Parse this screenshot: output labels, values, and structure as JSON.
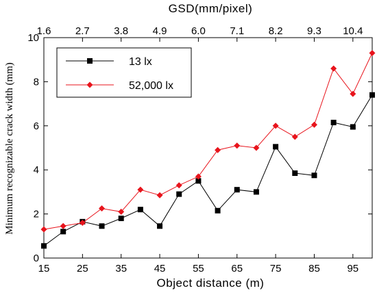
{
  "chart_data": {
    "type": "line",
    "xlabel": "Object distance (m)",
    "ylabel": "Minimum recognizable crack width (mm)",
    "top_axis_label": "GSD(mm/pixel)",
    "xlim": [
      15,
      100
    ],
    "ylim": [
      0,
      10
    ],
    "x_ticks": [
      15,
      25,
      35,
      45,
      55,
      65,
      75,
      85,
      95
    ],
    "x_tick_labels": [
      "15",
      "25",
      "35",
      "45",
      "55",
      "65",
      "75",
      "85",
      "95"
    ],
    "y_ticks": [
      0,
      2,
      4,
      6,
      8,
      10
    ],
    "y_tick_labels": [
      "0",
      "2",
      "4",
      "6",
      "8",
      "10"
    ],
    "top_ticks": [
      15,
      25,
      35,
      45,
      55,
      65,
      75,
      85,
      95
    ],
    "top_tick_labels": [
      "1.6",
      "2.7",
      "3.8",
      "4.9",
      "6.0",
      "7.1",
      "8.2",
      "9.3",
      "10.4"
    ],
    "x": [
      15,
      20,
      25,
      30,
      35,
      40,
      45,
      50,
      55,
      60,
      65,
      70,
      75,
      80,
      85,
      90,
      95,
      100
    ],
    "series": [
      {
        "name": "13 lx",
        "color": "#000000",
        "marker": "square",
        "values": [
          0.55,
          1.2,
          1.65,
          1.45,
          1.8,
          2.2,
          1.45,
          2.9,
          3.5,
          2.15,
          3.1,
          3.0,
          5.05,
          3.85,
          3.75,
          6.15,
          5.95,
          7.4
        ]
      },
      {
        "name": "52,000 lx",
        "color": "#e8141c",
        "marker": "diamond",
        "values": [
          1.3,
          1.45,
          1.6,
          2.25,
          2.1,
          3.1,
          2.85,
          3.3,
          3.7,
          4.9,
          5.1,
          5.0,
          6.0,
          5.5,
          6.05,
          8.6,
          7.45,
          9.3
        ]
      }
    ],
    "legend_position": "top-left",
    "grid": false
  }
}
